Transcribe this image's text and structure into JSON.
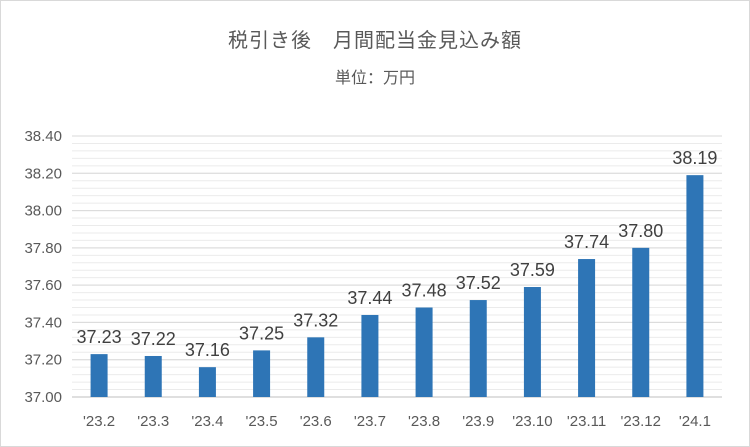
{
  "chart_data": {
    "type": "bar",
    "title": "税引き後　月間配当金見込み額",
    "subtitle": "単位：万円",
    "categories": [
      "'23.2",
      "'23.3",
      "'23.4",
      "'23.5",
      "'23.6",
      "'23.7",
      "'23.8",
      "'23.9",
      "'23.10",
      "'23.11",
      "'23.12",
      "'24.1"
    ],
    "values": [
      37.23,
      37.22,
      37.16,
      37.25,
      37.32,
      37.44,
      37.48,
      37.52,
      37.59,
      37.74,
      37.8,
      38.19
    ],
    "value_labels": [
      "37.23",
      "37.22",
      "37.16",
      "37.25",
      "37.32",
      "37.44",
      "37.48",
      "37.52",
      "37.59",
      "37.74",
      "37.80",
      "38.19"
    ],
    "y_ticks": [
      "37.00",
      "37.20",
      "37.40",
      "37.60",
      "37.80",
      "38.00",
      "38.20",
      "38.40"
    ],
    "ylim": [
      37.0,
      38.4
    ],
    "y_step": 0.2,
    "minor_grid_step": 0.04,
    "grid": true,
    "legend": "none",
    "bar_color": "#2e75b6",
    "grid_major_color": "#d9d9d9",
    "grid_minor_color": "#ebebeb"
  }
}
